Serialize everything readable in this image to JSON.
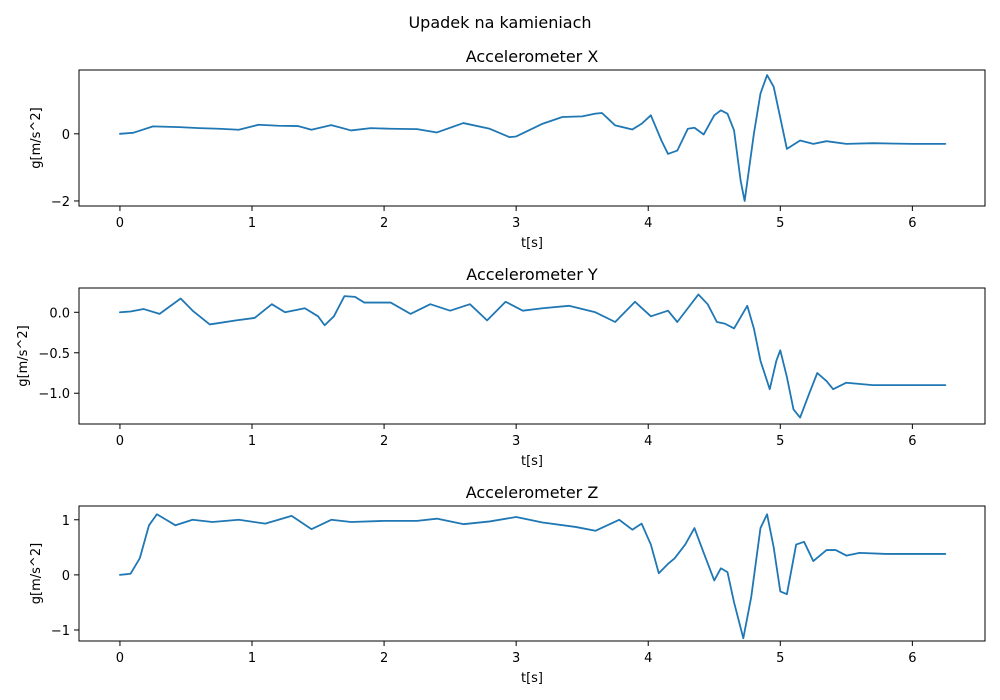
{
  "figure": {
    "title": "Upadek na kamieniach"
  },
  "chart_data": [
    {
      "type": "line",
      "title": "Accelerometer X",
      "xlabel": "t[s]",
      "ylabel": "g[m/s^2]",
      "xlim": [
        -0.31,
        6.55
      ],
      "ylim": [
        -2.15,
        1.9
      ],
      "xticks": [
        0,
        1,
        2,
        3,
        4,
        5,
        6
      ],
      "xtick_labels": [
        "0",
        "1",
        "2",
        "3",
        "4",
        "5",
        "6"
      ],
      "yticks": [
        -2,
        0
      ],
      "ytick_labels": [
        "−2",
        "0"
      ],
      "color": "#1f77b4",
      "series": [
        {
          "x": [
            0,
            0.1,
            0.25,
            0.45,
            0.6,
            0.75,
            0.9,
            1.05,
            1.2,
            1.35,
            1.45,
            1.6,
            1.75,
            1.9,
            2.05,
            2.25,
            2.4,
            2.6,
            2.8,
            2.95,
            3.0,
            3.2,
            3.35,
            3.5,
            3.6,
            3.65,
            3.75,
            3.88,
            3.95,
            4.02,
            4.1,
            4.15,
            4.22,
            4.3,
            4.35,
            4.42,
            4.5,
            4.55,
            4.6,
            4.65,
            4.7,
            4.73,
            4.8,
            4.85,
            4.9,
            4.95,
            5.05,
            5.15,
            5.25,
            5.35,
            5.5,
            5.7,
            6.0,
            6.25
          ],
          "y": [
            0,
            0.03,
            0.22,
            0.2,
            0.17,
            0.15,
            0.12,
            0.27,
            0.24,
            0.23,
            0.12,
            0.26,
            0.1,
            0.17,
            0.15,
            0.14,
            0.04,
            0.32,
            0.15,
            -0.1,
            -0.08,
            0.3,
            0.5,
            0.52,
            0.6,
            0.62,
            0.25,
            0.13,
            0.3,
            0.55,
            -0.2,
            -0.6,
            -0.5,
            0.15,
            0.18,
            -0.02,
            0.55,
            0.7,
            0.6,
            0.1,
            -1.4,
            -2.0,
            0.0,
            1.2,
            1.75,
            1.4,
            -0.45,
            -0.2,
            -0.3,
            -0.22,
            -0.3,
            -0.28,
            -0.3,
            -0.3
          ]
        }
      ]
    },
    {
      "type": "line",
      "title": "Accelerometer Y",
      "xlabel": "t[s]",
      "ylabel": "g[m/s^2]",
      "xlim": [
        -0.31,
        6.55
      ],
      "ylim": [
        -1.38,
        0.3
      ],
      "xticks": [
        0,
        1,
        2,
        3,
        4,
        5,
        6
      ],
      "xtick_labels": [
        "0",
        "1",
        "2",
        "3",
        "4",
        "5",
        "6"
      ],
      "yticks": [
        -1.0,
        -0.5,
        0.0
      ],
      "ytick_labels": [
        "−1.0",
        "−0.5",
        "0.0"
      ],
      "color": "#1f77b4",
      "series": [
        {
          "x": [
            0,
            0.08,
            0.18,
            0.3,
            0.46,
            0.55,
            0.68,
            0.88,
            1.02,
            1.15,
            1.25,
            1.4,
            1.5,
            1.55,
            1.62,
            1.7,
            1.78,
            1.85,
            2.05,
            2.2,
            2.35,
            2.5,
            2.65,
            2.78,
            2.92,
            3.05,
            3.2,
            3.4,
            3.6,
            3.75,
            3.9,
            4.02,
            4.15,
            4.22,
            4.3,
            4.38,
            4.45,
            4.52,
            4.58,
            4.65,
            4.75,
            4.8,
            4.85,
            4.92,
            4.97,
            5.0,
            5.05,
            5.1,
            5.15,
            5.22,
            5.28,
            5.35,
            5.4,
            5.5,
            5.7,
            6.0,
            6.25
          ],
          "y": [
            0,
            0.01,
            0.04,
            -0.02,
            0.17,
            0.02,
            -0.15,
            -0.1,
            -0.07,
            0.1,
            0.0,
            0.05,
            -0.05,
            -0.16,
            -0.05,
            0.2,
            0.19,
            0.12,
            0.12,
            -0.02,
            0.1,
            0.02,
            0.1,
            -0.1,
            0.13,
            0.02,
            0.05,
            0.08,
            0.0,
            -0.12,
            0.13,
            -0.05,
            0.02,
            -0.12,
            0.05,
            0.22,
            0.1,
            -0.12,
            -0.14,
            -0.2,
            0.08,
            -0.2,
            -0.6,
            -0.95,
            -0.6,
            -0.47,
            -0.8,
            -1.2,
            -1.3,
            -1.0,
            -0.75,
            -0.85,
            -0.95,
            -0.87,
            -0.9,
            -0.9,
            -0.9
          ]
        }
      ]
    },
    {
      "type": "line",
      "title": "Accelerometer Z",
      "xlabel": "t[s]",
      "ylabel": "g[m/s^2]",
      "xlim": [
        -0.31,
        6.55
      ],
      "ylim": [
        -1.2,
        1.25
      ],
      "xticks": [
        0,
        1,
        2,
        3,
        4,
        5,
        6
      ],
      "xtick_labels": [
        "0",
        "1",
        "2",
        "3",
        "4",
        "5",
        "6"
      ],
      "yticks": [
        -1,
        0,
        1
      ],
      "ytick_labels": [
        "−1",
        "0",
        "1"
      ],
      "color": "#1f77b4",
      "series": [
        {
          "x": [
            0,
            0.08,
            0.15,
            0.22,
            0.28,
            0.35,
            0.42,
            0.55,
            0.7,
            0.9,
            1.1,
            1.3,
            1.45,
            1.6,
            1.75,
            2.0,
            2.25,
            2.4,
            2.6,
            2.8,
            3.0,
            3.2,
            3.45,
            3.6,
            3.78,
            3.88,
            3.95,
            4.02,
            4.08,
            4.15,
            4.2,
            4.28,
            4.35,
            4.42,
            4.5,
            4.55,
            4.6,
            4.65,
            4.72,
            4.78,
            4.85,
            4.9,
            4.95,
            5.0,
            5.05,
            5.12,
            5.18,
            5.25,
            5.35,
            5.42,
            5.5,
            5.6,
            5.8,
            6.0,
            6.25
          ],
          "y": [
            0,
            0.02,
            0.3,
            0.9,
            1.1,
            1.0,
            0.9,
            1.0,
            0.96,
            1.0,
            0.93,
            1.07,
            0.83,
            1.0,
            0.96,
            0.98,
            0.98,
            1.02,
            0.92,
            0.97,
            1.05,
            0.95,
            0.87,
            0.8,
            1.0,
            0.82,
            0.93,
            0.55,
            0.03,
            0.2,
            0.3,
            0.55,
            0.85,
            0.4,
            -0.1,
            0.12,
            0.05,
            -0.5,
            -1.15,
            -0.4,
            0.85,
            1.1,
            0.5,
            -0.3,
            -0.35,
            0.55,
            0.6,
            0.25,
            0.45,
            0.45,
            0.35,
            0.4,
            0.38,
            0.38,
            0.38
          ]
        }
      ]
    }
  ]
}
